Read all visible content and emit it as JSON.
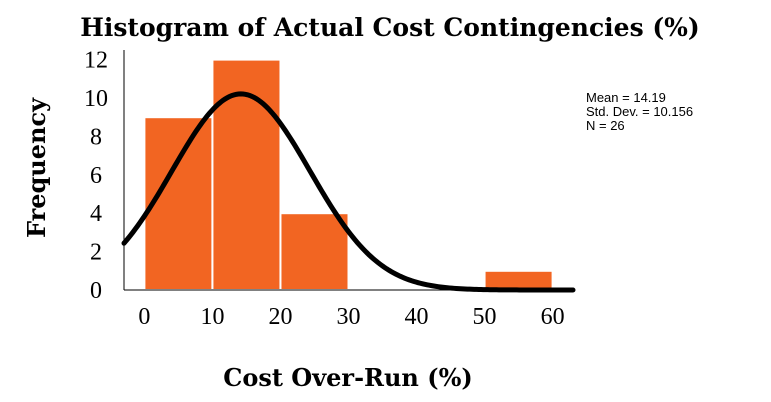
{
  "chart_data": {
    "type": "bar",
    "title": "Histogram of Actual Cost Contingencies (%)",
    "xlabel": "Cost Over-Run (%)",
    "ylabel": "Frequency",
    "bins": [
      {
        "x0": 0,
        "x1": 10,
        "count": 9
      },
      {
        "x0": 10,
        "x1": 20,
        "count": 12
      },
      {
        "x0": 20,
        "x1": 30,
        "count": 4
      },
      {
        "x0": 30,
        "x1": 40,
        "count": 0
      },
      {
        "x0": 40,
        "x1": 50,
        "count": 0
      },
      {
        "x0": 50,
        "x1": 60,
        "count": 1
      }
    ],
    "xlim": [
      -3,
      63
    ],
    "ylim": [
      0,
      12.5
    ],
    "xticks": [
      0,
      10,
      20,
      30,
      40,
      50,
      60
    ],
    "yticks": [
      0,
      2,
      4,
      6,
      8,
      10,
      12
    ],
    "normal_curve": {
      "mean": 14.19,
      "std": 10.156,
      "n": 26,
      "bin_width": 10
    },
    "stats_text": [
      "Mean = 14.19",
      "Std. Dev. = 10.156",
      "N = 26"
    ],
    "bar_color": "#f26522",
    "curve_color": "#000000",
    "grid": false,
    "legend": "none"
  }
}
